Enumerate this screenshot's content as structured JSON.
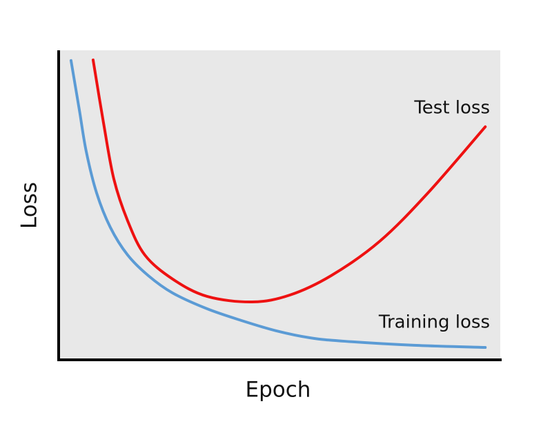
{
  "chart_data": {
    "type": "line",
    "x_label": "Epoch",
    "y_label": "Loss",
    "xlim": [
      0,
      100
    ],
    "ylim": [
      0,
      100
    ],
    "series": [
      {
        "name": "Training loss",
        "color": "#5b9bd5",
        "x": [
          2.8,
          4.7,
          6.25,
          8.6,
          11.7,
          15.6,
          20.3,
          25.8,
          33.6,
          41.4,
          49.2,
          57.0,
          64.8,
          80.5,
          96.6
        ],
        "values": [
          96.7,
          80.6,
          67.3,
          53.9,
          42.8,
          33.9,
          27.2,
          21.6,
          16.5,
          12.7,
          9.4,
          7.1,
          6.0,
          4.7,
          4.0
        ]
      },
      {
        "name": "Test loss",
        "color": "#ee1111",
        "x": [
          7.8,
          10.2,
          12.5,
          15.6,
          19.5,
          25.8,
          33.6,
          43.8,
          52.3,
          61.7,
          72.7,
          83.6,
          96.6
        ],
        "values": [
          96.9,
          76.2,
          58.4,
          45.0,
          33.9,
          26.1,
          20.5,
          18.7,
          20.9,
          27.2,
          38.3,
          53.9,
          75.3
        ]
      }
    ]
  }
}
